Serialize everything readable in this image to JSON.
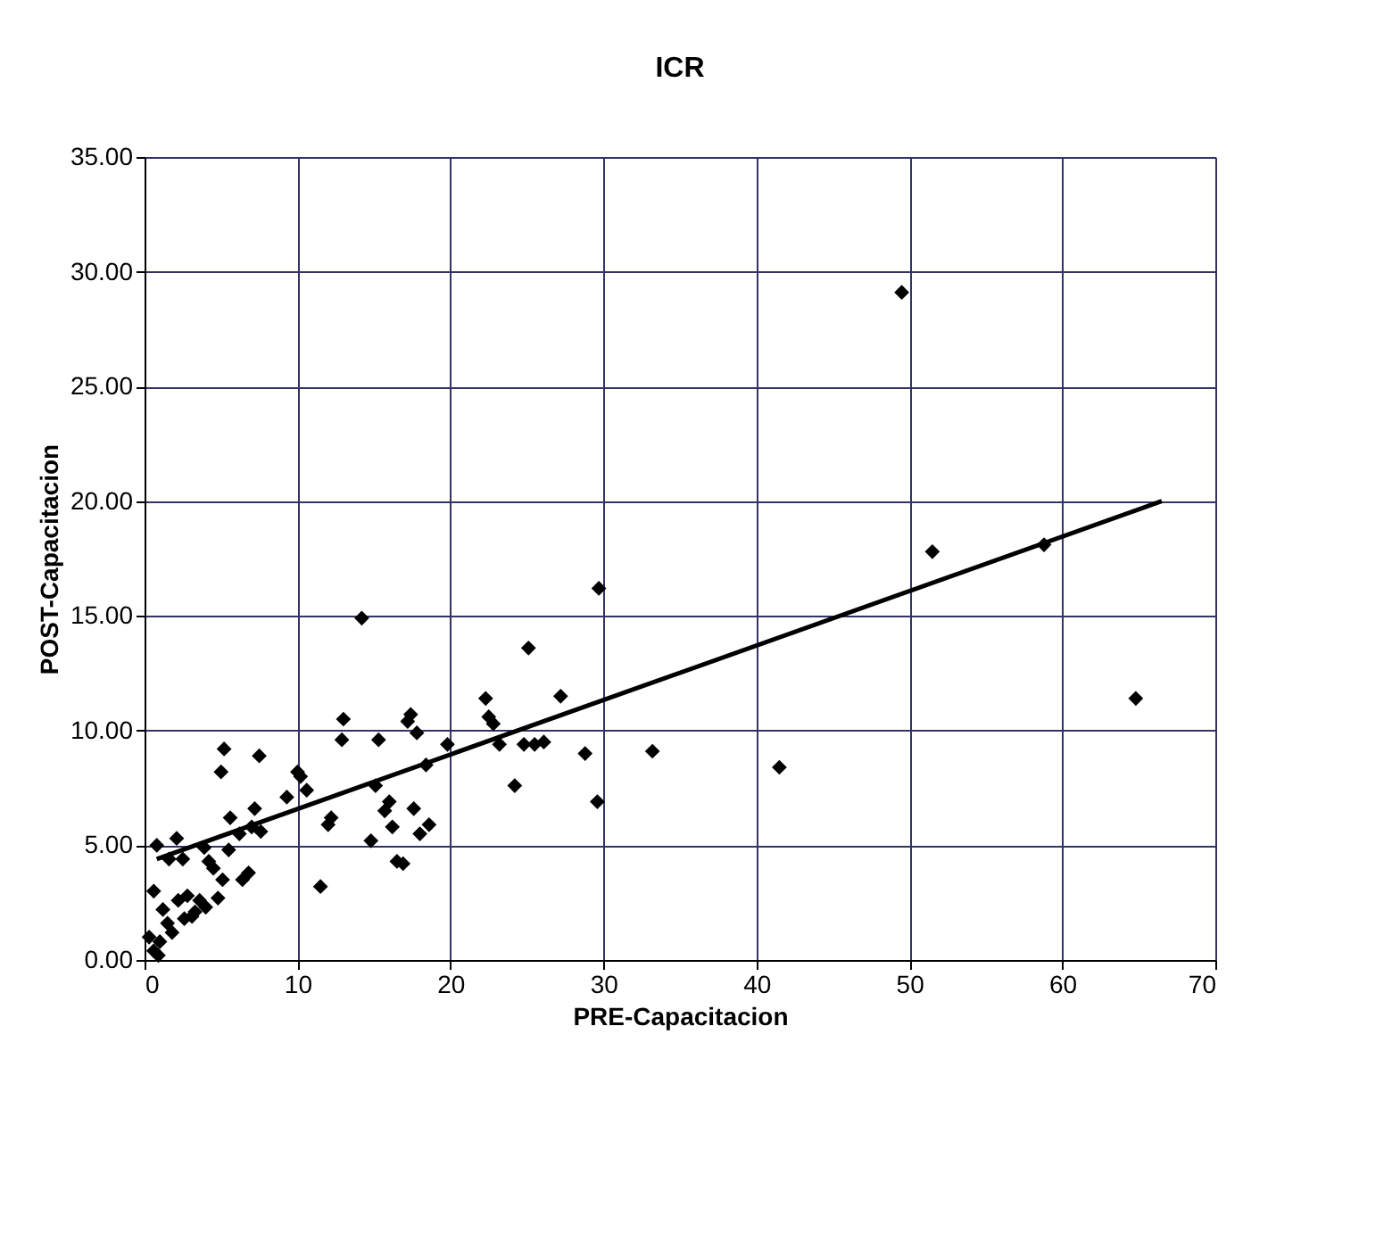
{
  "chart_data": {
    "type": "scatter",
    "title": "ICR",
    "xlabel": "PRE-Capacitacion",
    "ylabel": "POST-Capacitacion",
    "xlim": [
      0,
      70
    ],
    "xticks": [
      0,
      10,
      20,
      30,
      40,
      50,
      60,
      70
    ],
    "ylim": [
      0,
      35
    ],
    "yticks": [
      {
        "value": 0,
        "label": "0.00"
      },
      {
        "value": 5,
        "label": "5.00"
      },
      {
        "value": 10,
        "label": "10.00"
      },
      {
        "value": 15,
        "label": "15.00"
      },
      {
        "value": 20,
        "label": "20.00"
      },
      {
        "value": 25,
        "label": "25.00"
      },
      {
        "value": 30,
        "label": "30.00"
      },
      {
        "value": 35,
        "label": "35.00"
      }
    ],
    "grid": true,
    "marker": "diamond",
    "series": [
      {
        "color": "#000000",
        "x": [
          49.5,
          51.5,
          58.8,
          64.8,
          41.5,
          33.2,
          29.7,
          29.6,
          28.8,
          27.2,
          26.1,
          25.1,
          25.5,
          24.8,
          24.2,
          23.2,
          22.8,
          22.5,
          22.3,
          19.8,
          18.4,
          18.6,
          17.8,
          17.4,
          17.2,
          17.6,
          18.0,
          16.9,
          16.5,
          16.2,
          16.0,
          15.7,
          15.1,
          15.3,
          14.8,
          14.2,
          13.0,
          12.9,
          12.2,
          12.0,
          11.5,
          10.6,
          10.2,
          10.0,
          9.3,
          7.6,
          7.5,
          7.2,
          7.0,
          6.8,
          6.4,
          6.2,
          5.6,
          5.2,
          5.0,
          5.5,
          5.1,
          4.5,
          4.2,
          3.6,
          3.3,
          3.1,
          2.8,
          2.5,
          2.1,
          1.6,
          0.8,
          0.6,
          1.2,
          1.5,
          1.8,
          2.2,
          2.6,
          1.0,
          0.6,
          0.3,
          0.9,
          4.0,
          4.8,
          3.9
        ],
        "values": [
          29.1,
          17.8,
          18.1,
          11.4,
          8.4,
          9.1,
          16.2,
          6.9,
          9.0,
          11.5,
          9.5,
          13.6,
          9.4,
          9.4,
          7.6,
          9.4,
          10.3,
          10.6,
          11.4,
          9.4,
          8.5,
          5.9,
          9.9,
          10.7,
          10.4,
          6.6,
          5.5,
          4.2,
          4.3,
          5.8,
          6.9,
          6.5,
          7.6,
          9.6,
          5.2,
          14.9,
          10.5,
          9.6,
          6.2,
          5.9,
          3.2,
          7.4,
          8.0,
          8.2,
          7.1,
          5.6,
          8.9,
          6.6,
          5.8,
          3.8,
          3.5,
          5.5,
          6.2,
          9.2,
          8.2,
          4.8,
          3.5,
          4.0,
          4.3,
          2.6,
          2.1,
          1.9,
          2.8,
          4.4,
          5.3,
          4.4,
          5.0,
          3.0,
          2.2,
          1.6,
          1.2,
          2.6,
          1.8,
          0.8,
          0.4,
          1.0,
          0.2,
          2.3,
          2.7,
          4.9
        ]
      },
      {
        "type": "line",
        "color": "#000000",
        "x": [
          0.8,
          66.5
        ],
        "values": [
          4.4,
          20.0
        ],
        "marker": "none",
        "line_style": "solid"
      }
    ]
  }
}
